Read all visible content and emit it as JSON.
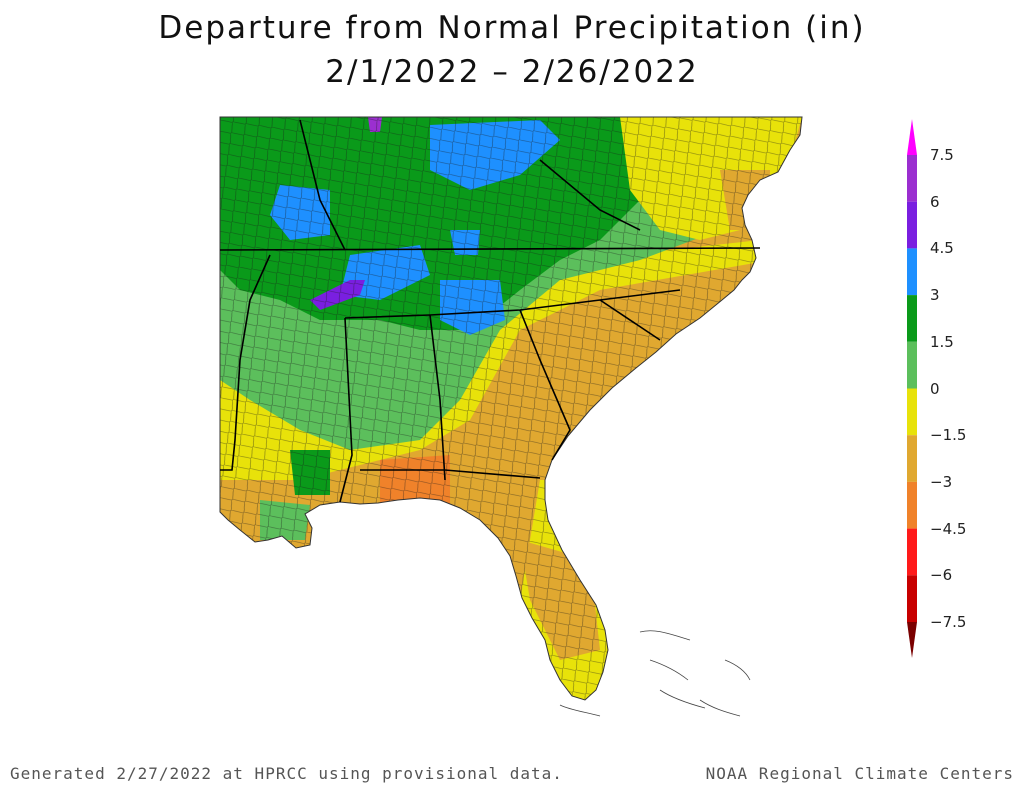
{
  "title": "Departure from Normal Precipitation (in)",
  "subtitle": "2/1/2022 – 2/26/2022",
  "legend": {
    "ticks": [
      "7.5",
      "6",
      "4.5",
      "3",
      "1.5",
      "0",
      "−1.5",
      "−3",
      "−4.5",
      "−6",
      "−7.5"
    ],
    "bins": [
      {
        "range": "> 7.5",
        "color": "#ff00ff"
      },
      {
        "range": "6 to 7.5",
        "color": "#9b2fd0"
      },
      {
        "range": "4.5 to 6",
        "color": "#7a1fe0"
      },
      {
        "range": "3 to 4.5",
        "color": "#1e90ff"
      },
      {
        "range": "1.5 to 3",
        "color": "#0a9a1a"
      },
      {
        "range": "0 to 1.5",
        "color": "#5cbf5c"
      },
      {
        "range": "-1.5 to 0",
        "color": "#e8e20a"
      },
      {
        "range": "-3 to -1.5",
        "color": "#e0a830"
      },
      {
        "range": "-4.5 to -3",
        "color": "#f0822a"
      },
      {
        "range": "-6 to -4.5",
        "color": "#ff1a1a"
      },
      {
        "range": "-7.5 to -6",
        "color": "#c80000"
      },
      {
        "range": "< -7.5",
        "color": "#7a0000"
      }
    ]
  },
  "footer": {
    "left": "Generated 2/27/2022 at HPRCC using provisional data.",
    "right": "NOAA Regional Climate Centers"
  }
}
